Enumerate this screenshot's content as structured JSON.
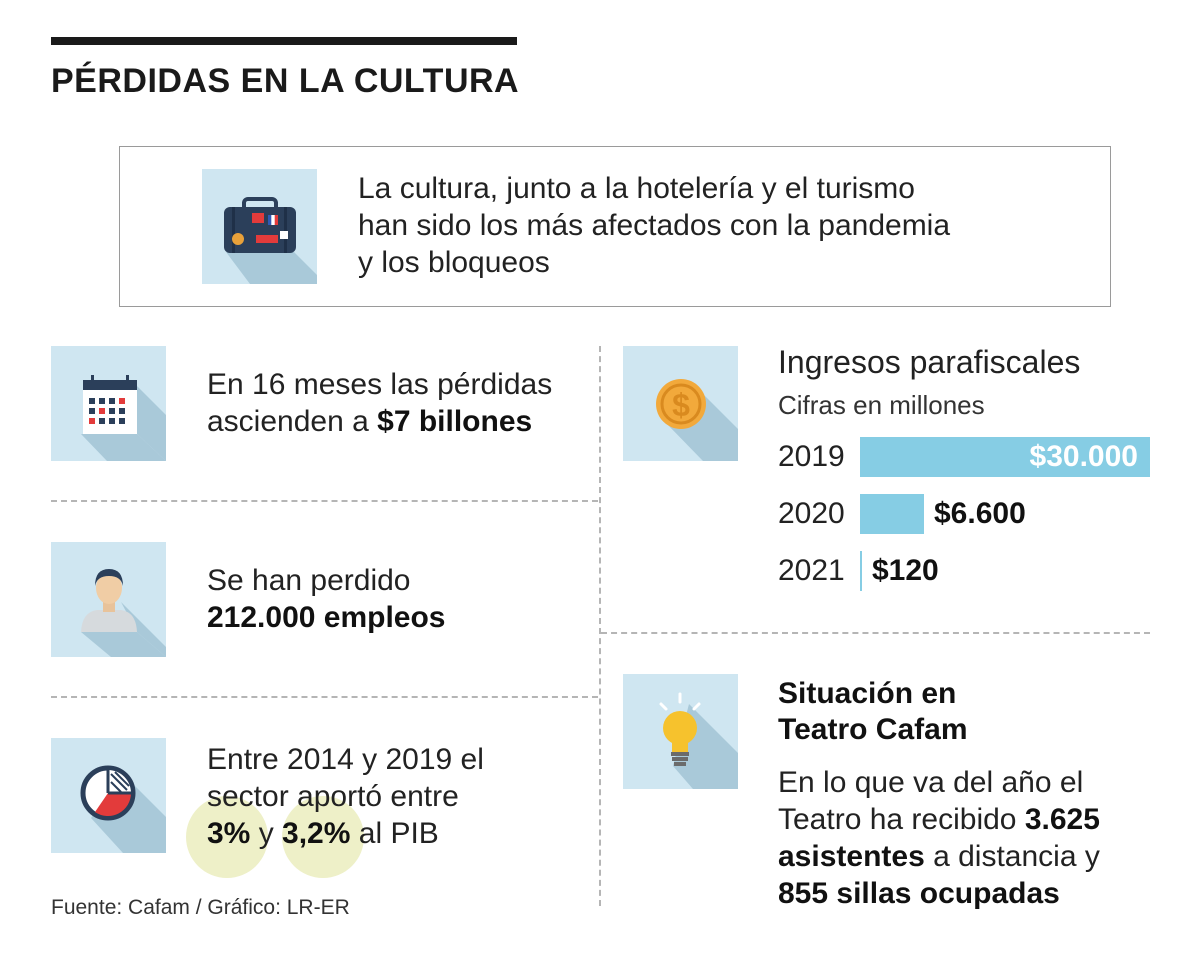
{
  "title": "PÉRDIDAS EN LA CULTURA",
  "intro": {
    "line1": "La cultura, junto a la hotelería y el turismo",
    "line2": "han sido los más afectados con la pandemia",
    "line3": "y los bloqueos"
  },
  "losses": {
    "line1": "En 16 meses las pérdidas",
    "line2_pre": "ascienden a ",
    "line2_bold": "$7 billones"
  },
  "jobs": {
    "line1": "Se han perdido",
    "line2_bold": "212.000 empleos"
  },
  "gdp": {
    "line1": "Entre 2014 y 2019 el",
    "line2": "sector aportó entre",
    "low": "3%",
    "mid": " y ",
    "high": "3,2%",
    "tail": " al PIB"
  },
  "chart_data": {
    "type": "bar",
    "orientation": "horizontal",
    "title": "Ingresos parafiscales",
    "subtitle": "Cifras en millones",
    "categories": [
      "2019",
      "2020",
      "2021"
    ],
    "values": [
      30000,
      6600,
      120
    ],
    "labels": [
      "$30.000",
      "$6.600",
      "$120"
    ],
    "xlim": [
      0,
      30000
    ]
  },
  "theatre": {
    "heading1": "Situación en",
    "heading2": "Teatro Cafam",
    "l1": "En lo que va del año el",
    "l2_pre": "Teatro ha recibido ",
    "l2_bold": "3.625",
    "l3_bold": "asistentes",
    "l3_post": " a distancia y",
    "l4_bold": "855 sillas ocupadas"
  },
  "source": "Fuente: Cafam / Gráfico: LR-ER",
  "colors": {
    "icon_bg": "#cfe6f1",
    "bar": "#86cde4",
    "highlight": "#eef0c8",
    "text": "#1a1a1a"
  },
  "icons": [
    "suitcase-icon",
    "calendar-icon",
    "person-icon",
    "pie-chart-icon",
    "coin-icon",
    "lightbulb-icon"
  ]
}
